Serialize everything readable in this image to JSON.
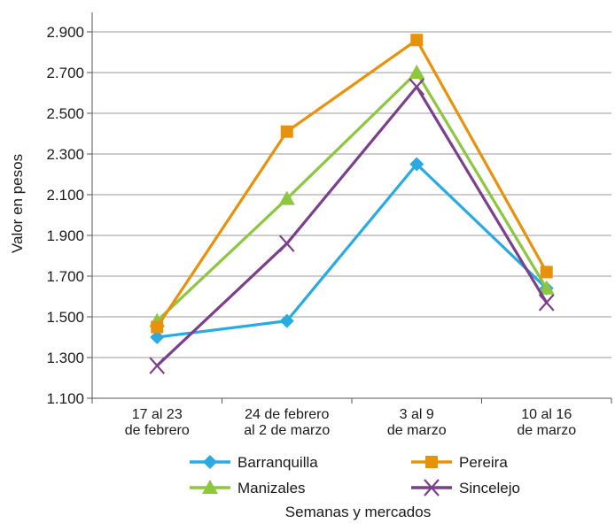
{
  "chart_data": {
    "type": "line",
    "title": "",
    "xlabel": "Semanas y mercados",
    "ylabel": "Valor en pesos",
    "ylim": [
      1100,
      3000
    ],
    "yticks": [
      1100,
      1300,
      1500,
      1700,
      1900,
      2100,
      2300,
      2500,
      2700,
      2900
    ],
    "ytick_labels": [
      "1.100",
      "1.300",
      "1.500",
      "1.700",
      "1.900",
      "2.100",
      "2.300",
      "2.500",
      "2.700",
      "2.900"
    ],
    "categories": [
      [
        "17 al 23",
        "de febrero"
      ],
      [
        "24 de febrero",
        "al 2 de marzo"
      ],
      [
        "3 al 9",
        "de marzo"
      ],
      [
        "10 al 16",
        "de marzo"
      ]
    ],
    "grid": true,
    "legend_position": "bottom",
    "series": [
      {
        "name": "Barranquilla",
        "color": "#29abe2",
        "marker": "diamond",
        "values": [
          1400,
          1480,
          2250,
          1640
        ]
      },
      {
        "name": "Manizales",
        "color": "#8dc63f",
        "marker": "triangle",
        "values": [
          1480,
          2080,
          2700,
          1640
        ]
      },
      {
        "name": "Pereira",
        "color": "#e8920c",
        "marker": "square",
        "values": [
          1450,
          2410,
          2860,
          1720
        ]
      },
      {
        "name": "Sincelejo",
        "color": "#7b3f8c",
        "marker": "x",
        "values": [
          1260,
          1860,
          2630,
          1570
        ]
      }
    ]
  }
}
